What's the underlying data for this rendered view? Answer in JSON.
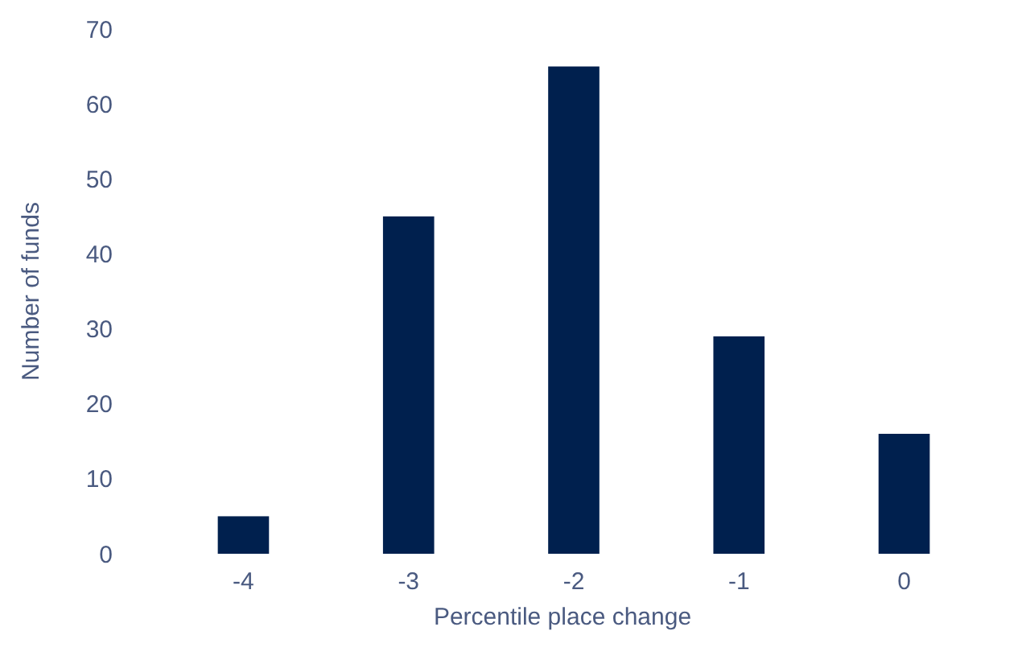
{
  "chart_data": {
    "type": "bar",
    "xlabel": "Percentile place change",
    "ylabel": "Number of funds",
    "categories": [
      "-4",
      "-3",
      "-2",
      "-1",
      "0"
    ],
    "values": [
      5,
      45,
      65,
      29,
      16
    ],
    "color": "#00204e",
    "ylim": [
      0,
      70
    ],
    "yticks": [
      0,
      10,
      20,
      30,
      40,
      50,
      60,
      70
    ],
    "grid": false
  }
}
